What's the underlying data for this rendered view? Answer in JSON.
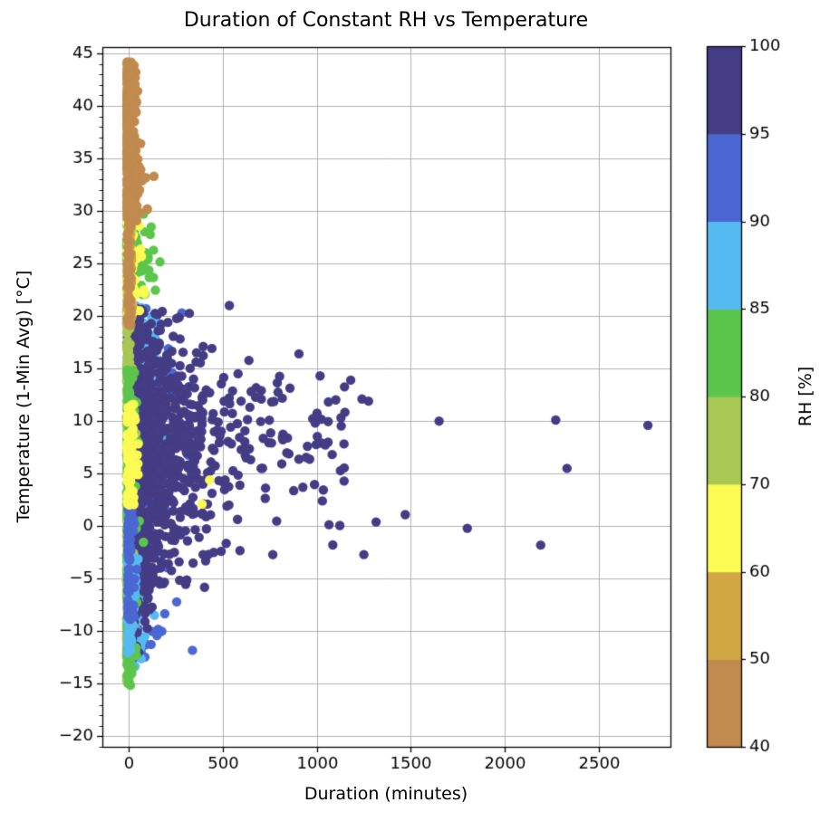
{
  "chart_data": {
    "type": "scatter",
    "title": "Duration of Constant RH vs Temperature",
    "xlabel": "Duration (minutes)",
    "ylabel": "Temperature (1-Min Avg) [°C]",
    "xlim": [
      -140,
      2880
    ],
    "ylim": [
      -21,
      45.6
    ],
    "xticks": [
      0,
      500,
      1000,
      1500,
      2000,
      2500
    ],
    "yticks": [
      -20,
      -15,
      -10,
      -5,
      0,
      5,
      10,
      15,
      20,
      25,
      30,
      35,
      40,
      45
    ],
    "y_minor_step": 1,
    "grid": true,
    "grid_color": "#b0b0b0",
    "axis_color": "#000000",
    "marker_radius_px": 5.2,
    "seed": 42,
    "colorbar": {
      "label": "RH [%]",
      "boundaries": [
        40,
        50,
        60,
        70,
        80,
        85,
        90,
        95,
        100
      ],
      "colors": [
        "#c18a4e",
        "#d1a743",
        "#fbfb54",
        "#a8c853",
        "#5cc64c",
        "#55bbf2",
        "#4b67d3",
        "#443c85"
      ]
    },
    "clusters": [
      {
        "rh": 92,
        "n": 340,
        "x": {
          "d": "e",
          "a": -8,
          "s": 70,
          "b": 340
        },
        "y": {
          "d": "u",
          "a": -13,
          "b": 21
        }
      },
      {
        "rh": 87,
        "n": 240,
        "x": {
          "d": "e",
          "a": -8,
          "s": 45,
          "b": 250
        },
        "y": {
          "d": "u",
          "a": -14,
          "b": 21
        }
      },
      {
        "rh": 87,
        "n": 80,
        "x": {
          "d": "e",
          "a": -8,
          "s": 55,
          "b": 215
        },
        "y": {
          "d": "u",
          "a": 13,
          "b": 18.5
        }
      },
      {
        "rh": 97,
        "n": 220,
        "x": {
          "d": "e",
          "a": -8,
          "s": 18,
          "b": 70
        },
        "y": {
          "d": "u",
          "a": -13,
          "b": 21
        }
      },
      {
        "rh": 97,
        "n": 950,
        "x": {
          "d": "e",
          "a": 5,
          "s": 160,
          "b": 860
        },
        "y": {
          "d": "g",
          "m": 8,
          "s": 5.6,
          "lo": -4,
          "hi": 21
        }
      },
      {
        "rh": 97,
        "n": 60,
        "x": {
          "d": "u",
          "a": 620,
          "b": 1150
        },
        "y": {
          "d": "g",
          "m": 8,
          "s": 4.8,
          "lo": -3,
          "hi": 16
        }
      },
      {
        "rh": 97,
        "n": 90,
        "x": {
          "d": "e",
          "a": 10,
          "s": 100,
          "b": 470
        },
        "y": {
          "d": "u",
          "a": -6,
          "b": 0.5
        }
      },
      {
        "rh": 97,
        "n": 55,
        "x": {
          "d": "e",
          "a": 0,
          "s": 45,
          "b": 180
        },
        "y": {
          "d": "u",
          "a": -10.5,
          "b": -3
        }
      },
      {
        "rh": 75,
        "n": 260,
        "x": {
          "d": "e",
          "a": -12,
          "s": 9,
          "b": 45
        },
        "y": {
          "d": "u",
          "a": -15.2,
          "b": 30
        }
      },
      {
        "rh": 82,
        "n": 160,
        "x": {
          "d": "e",
          "a": -10,
          "s": 40,
          "b": 170
        },
        "y": {
          "d": "u",
          "a": 22,
          "b": 30
        }
      },
      {
        "rh": 82,
        "n": 170,
        "x": {
          "d": "e",
          "a": -10,
          "s": 14,
          "b": 90
        },
        "y": {
          "d": "u",
          "a": -15.3,
          "b": 15
        }
      },
      {
        "rh": 87,
        "n": 90,
        "x": {
          "d": "e",
          "a": -6,
          "s": 12,
          "b": 50
        },
        "y": {
          "d": "u",
          "a": -12.5,
          "b": -3
        }
      },
      {
        "rh": 92,
        "n": 70,
        "x": {
          "d": "e",
          "a": -6,
          "s": 14,
          "b": 60
        },
        "y": {
          "d": "u",
          "a": -9,
          "b": 2
        }
      },
      {
        "rh": 65,
        "n": 110,
        "x": {
          "d": "e",
          "a": -8,
          "s": 22,
          "b": 120
        },
        "y": {
          "d": "u",
          "a": 20,
          "b": 29
        }
      },
      {
        "rh": 65,
        "n": 90,
        "x": {
          "d": "e",
          "a": -8,
          "s": 15,
          "b": 60
        },
        "y": {
          "d": "u",
          "a": 2,
          "b": 12
        }
      },
      {
        "rh": 55,
        "n": 70,
        "x": {
          "d": "u",
          "a": -8,
          "b": 18
        },
        "y": {
          "d": "u",
          "a": 19,
          "b": 29
        }
      },
      {
        "rh": 45,
        "n": 70,
        "x": {
          "d": "e",
          "a": -5,
          "s": 28,
          "b": 135
        },
        "y": {
          "d": "u",
          "a": 29,
          "b": 34
        }
      },
      {
        "rh": 45,
        "n": 45,
        "x": {
          "d": "u",
          "a": -8,
          "b": 14
        },
        "y": {
          "d": "u",
          "a": 19,
          "b": 29.5
        }
      },
      {
        "rh": 45,
        "n": 520,
        "x": {
          "d": "e",
          "a": -10,
          "s": 16,
          "b": 65
        },
        "y": {
          "d": "u",
          "a": 29.5,
          "b": 44.2
        }
      }
    ],
    "outlier_points": [
      [
        535,
        21,
        97
      ],
      [
        905,
        16.4,
        97
      ],
      [
        1180,
        13.9,
        97
      ],
      [
        1240,
        12.1,
        97
      ],
      [
        1275,
        11.9,
        97
      ],
      [
        1145,
        4.3,
        97
      ],
      [
        1315,
        0.4,
        97
      ],
      [
        1250,
        -2.7,
        97
      ],
      [
        1470,
        1.1,
        97
      ],
      [
        1650,
        10.0,
        97
      ],
      [
        1800,
        -0.2,
        97
      ],
      [
        2190,
        -1.8,
        97
      ],
      [
        2270,
        10.1,
        97
      ],
      [
        2330,
        5.5,
        97
      ],
      [
        2760,
        9.6,
        97
      ],
      [
        390,
        2.1,
        65
      ],
      [
        430,
        4.4,
        65
      ],
      [
        255,
        -7.2,
        92
      ],
      [
        150,
        -10.4,
        92
      ]
    ]
  }
}
